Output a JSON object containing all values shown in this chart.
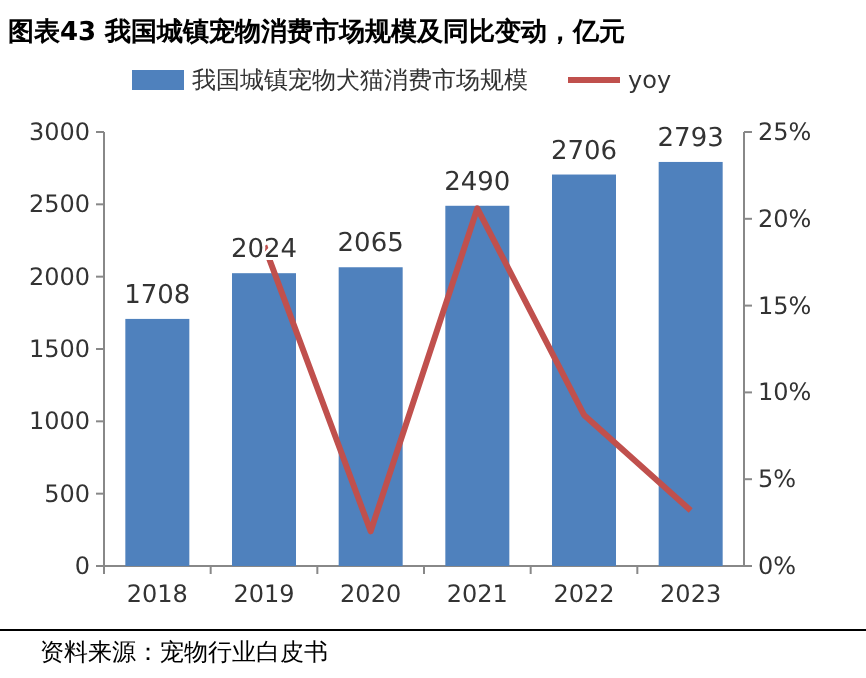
{
  "chart_data": {
    "type": "bar",
    "title": "图表43 我国城镇宠物消费市场规模及同比变动，亿元",
    "categories": [
      "2018",
      "2019",
      "2020",
      "2021",
      "2022",
      "2023"
    ],
    "series": [
      {
        "name": "我国城镇宠物犬猫消费市场规模",
        "color": "#4f81bd",
        "values": [
          1708,
          2024,
          2065,
          2490,
          2706,
          2793
        ],
        "data_labels": true
      },
      {
        "name": "yoy",
        "type": "line",
        "axis": "y2",
        "color": "#c0504d",
        "values": [
          null,
          18.5,
          2.0,
          20.6,
          8.7,
          3.2
        ]
      }
    ],
    "ylim": [
      0,
      3000
    ],
    "yticks": [
      0,
      500,
      1000,
      1500,
      2000,
      2500,
      3000
    ],
    "y2lim": [
      0,
      25
    ],
    "y2ticks": [
      {
        "value": 0,
        "label": "0%"
      },
      {
        "value": 5,
        "label": "5%"
      },
      {
        "value": 10,
        "label": "10%"
      },
      {
        "value": 15,
        "label": "15%"
      },
      {
        "value": 20,
        "label": "20%"
      },
      {
        "value": 25,
        "label": "25%"
      }
    ],
    "legend": "top",
    "grid": false,
    "annotations": [
      "资料来源：宠物行业白皮书"
    ]
  }
}
